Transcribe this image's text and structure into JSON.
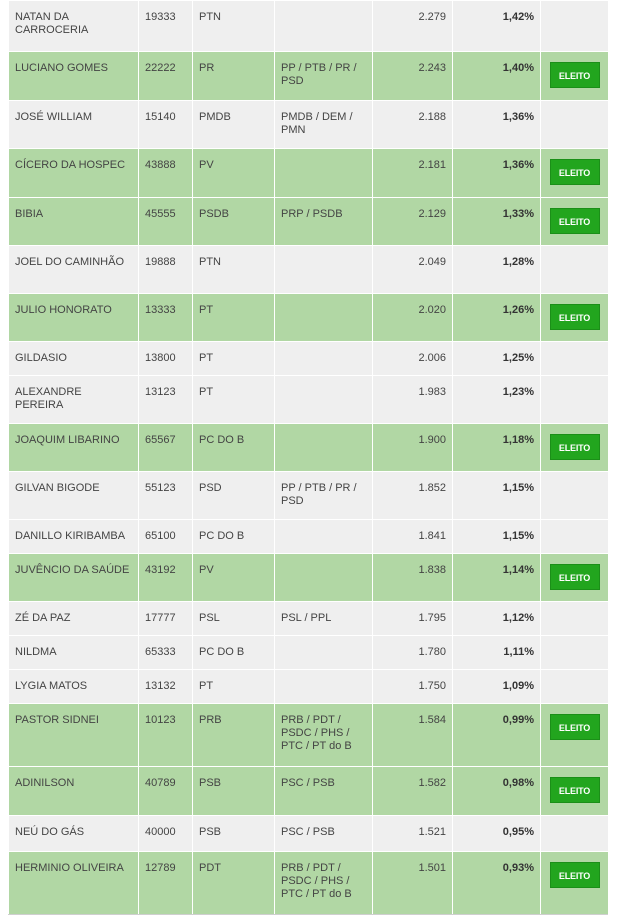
{
  "table": {
    "status_label": "ELEITO",
    "rows": [
      {
        "name": "NATAN DA CARROCERIA",
        "number": "19333",
        "party": "PTN",
        "coalition": "",
        "votes": "2.279",
        "percent": "1,42%",
        "elected": false
      },
      {
        "name": "LUCIANO GOMES",
        "number": "22222",
        "party": "PR",
        "coalition": "PP / PTB / PR / PSD",
        "votes": "2.243",
        "percent": "1,40%",
        "elected": true
      },
      {
        "name": "JOSÉ WILLIAM",
        "number": "15140",
        "party": "PMDB",
        "coalition": "PMDB / DEM / PMN",
        "votes": "2.188",
        "percent": "1,36%",
        "elected": false
      },
      {
        "name": "CÍCERO DA HOSPEC",
        "number": "43888",
        "party": "PV",
        "coalition": "",
        "votes": "2.181",
        "percent": "1,36%",
        "elected": true
      },
      {
        "name": "BIBIA",
        "number": "45555",
        "party": "PSDB",
        "coalition": "PRP / PSDB",
        "votes": "2.129",
        "percent": "1,33%",
        "elected": true
      },
      {
        "name": "JOEL DO CAMINHÃO",
        "number": "19888",
        "party": "PTN",
        "coalition": "",
        "votes": "2.049",
        "percent": "1,28%",
        "elected": false
      },
      {
        "name": "JULIO HONORATO",
        "number": "13333",
        "party": "PT",
        "coalition": "",
        "votes": "2.020",
        "percent": "1,26%",
        "elected": true
      },
      {
        "name": "GILDASIO",
        "number": "13800",
        "party": "PT",
        "coalition": "",
        "votes": "2.006",
        "percent": "1,25%",
        "elected": false
      },
      {
        "name": "ALEXANDRE PEREIRA",
        "number": "13123",
        "party": "PT",
        "coalition": "",
        "votes": "1.983",
        "percent": "1,23%",
        "elected": false
      },
      {
        "name": "JOAQUIM LIBARINO",
        "number": "65567",
        "party": "PC DO B",
        "coalition": "",
        "votes": "1.900",
        "percent": "1,18%",
        "elected": true
      },
      {
        "name": "GILVAN BIGODE",
        "number": "55123",
        "party": "PSD",
        "coalition": "PP / PTB / PR / PSD",
        "votes": "1.852",
        "percent": "1,15%",
        "elected": false
      },
      {
        "name": "DANILLO KIRIBAMBA",
        "number": "65100",
        "party": "PC DO B",
        "coalition": "",
        "votes": "1.841",
        "percent": "1,15%",
        "elected": false
      },
      {
        "name": "JUVÊNCIO DA SAÚDE",
        "number": "43192",
        "party": "PV",
        "coalition": "",
        "votes": "1.838",
        "percent": "1,14%",
        "elected": true
      },
      {
        "name": "ZÉ DA PAZ",
        "number": "17777",
        "party": "PSL",
        "coalition": "PSL / PPL",
        "votes": "1.795",
        "percent": "1,12%",
        "elected": false
      },
      {
        "name": "NILDMA",
        "number": "65333",
        "party": "PC DO B",
        "coalition": "",
        "votes": "1.780",
        "percent": "1,11%",
        "elected": false
      },
      {
        "name": "LYGIA MATOS",
        "number": "13132",
        "party": "PT",
        "coalition": "",
        "votes": "1.750",
        "percent": "1,09%",
        "elected": false
      },
      {
        "name": "PASTOR SIDNEI",
        "number": "10123",
        "party": "PRB",
        "coalition": "PRB / PDT / PSDC / PHS / PTC / PT do B",
        "votes": "1.584",
        "percent": "0,99%",
        "elected": true
      },
      {
        "name": "ADINILSON",
        "number": "40789",
        "party": "PSB",
        "coalition": "PSC / PSB",
        "votes": "1.582",
        "percent": "0,98%",
        "elected": true
      },
      {
        "name": "NEÚ DO GÁS",
        "number": "40000",
        "party": "PSB",
        "coalition": "PSC / PSB",
        "votes": "1.521",
        "percent": "0,95%",
        "elected": false
      },
      {
        "name": "HERMINIO OLIVEIRA",
        "number": "12789",
        "party": "PDT",
        "coalition": "PRB / PDT / PSDC / PHS / PTC / PT do B",
        "votes": "1.501",
        "percent": "0,93%",
        "elected": true
      }
    ]
  }
}
